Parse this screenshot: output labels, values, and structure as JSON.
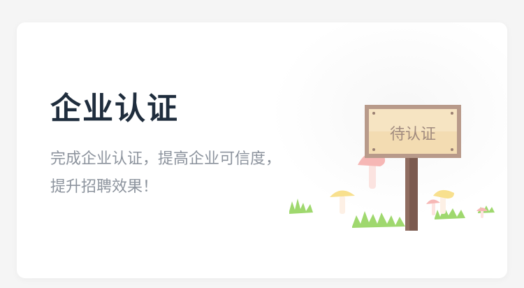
{
  "card": {
    "title": "企业认证",
    "description_lines": [
      "完成企业认证，提高企业可信度，",
      "提升招聘效果！"
    ]
  },
  "illustration": {
    "sign_text": "待认证"
  },
  "colors": {
    "title": "#1f2d3d",
    "description": "#8c939d",
    "sign_board": "#f3dcb2",
    "sign_frame": "#b89a8a",
    "sign_text": "#a08a7e",
    "grass": "#9fd86e"
  }
}
